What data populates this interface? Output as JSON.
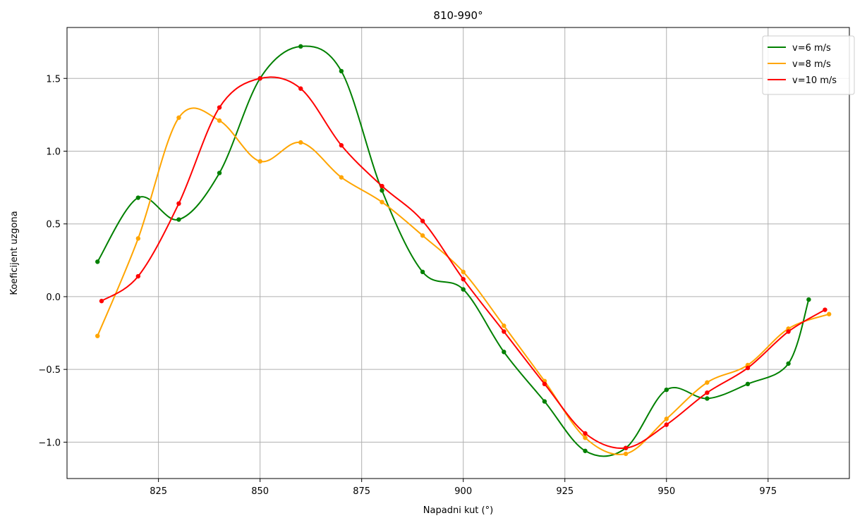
{
  "chart_data": {
    "type": "line",
    "title": "810-990°",
    "xlabel": "Napadni kut (°)",
    "ylabel": "Koeficijent uzgona",
    "xlim": [
      802.5,
      995
    ],
    "ylim": [
      -1.25,
      1.85
    ],
    "grid": true,
    "legend_position": "top-right",
    "x_ticks": [
      825,
      850,
      875,
      900,
      925,
      950,
      975
    ],
    "x_tick_labels": [
      "825",
      "850",
      "875",
      "900",
      "925",
      "950",
      "975"
    ],
    "y_ticks": [
      -1.0,
      -0.5,
      0.0,
      0.5,
      1.0,
      1.5
    ],
    "y_tick_labels": [
      "−1.0",
      "−0.5",
      "0.0",
      "0.5",
      "1.0",
      "1.5"
    ],
    "series": [
      {
        "name": "v=6 m/s",
        "color": "#008000",
        "x": [
          810,
          820,
          830,
          840,
          850,
          860,
          870,
          880,
          890,
          900,
          910,
          920,
          930,
          940,
          950,
          960,
          970,
          980,
          985
        ],
        "y": [
          0.24,
          0.68,
          0.53,
          0.85,
          1.5,
          1.72,
          1.55,
          0.73,
          0.17,
          0.05,
          -0.38,
          -0.72,
          -1.06,
          -1.04,
          -0.64,
          -0.7,
          -0.6,
          -0.46,
          -0.02
        ]
      },
      {
        "name": "v=8 m/s",
        "color": "#ffa500",
        "x": [
          810,
          820,
          830,
          840,
          850,
          860,
          870,
          880,
          890,
          900,
          910,
          920,
          930,
          940,
          950,
          960,
          970,
          980,
          990
        ],
        "y": [
          -0.27,
          0.4,
          1.23,
          1.21,
          0.93,
          1.06,
          0.82,
          0.65,
          0.42,
          0.17,
          -0.2,
          -0.58,
          -0.97,
          -1.08,
          -0.84,
          -0.59,
          -0.47,
          -0.22,
          -0.12
        ]
      },
      {
        "name": "v=10 m/s",
        "color": "#ff0000",
        "x": [
          811,
          820,
          830,
          840,
          850,
          860,
          870,
          880,
          890,
          900,
          910,
          920,
          930,
          940,
          950,
          960,
          970,
          980,
          989
        ],
        "y": [
          -0.03,
          0.14,
          0.64,
          1.3,
          1.5,
          1.43,
          1.04,
          0.76,
          0.52,
          0.12,
          -0.24,
          -0.6,
          -0.94,
          -1.04,
          -0.88,
          -0.66,
          -0.49,
          -0.24,
          -0.09
        ]
      }
    ]
  }
}
